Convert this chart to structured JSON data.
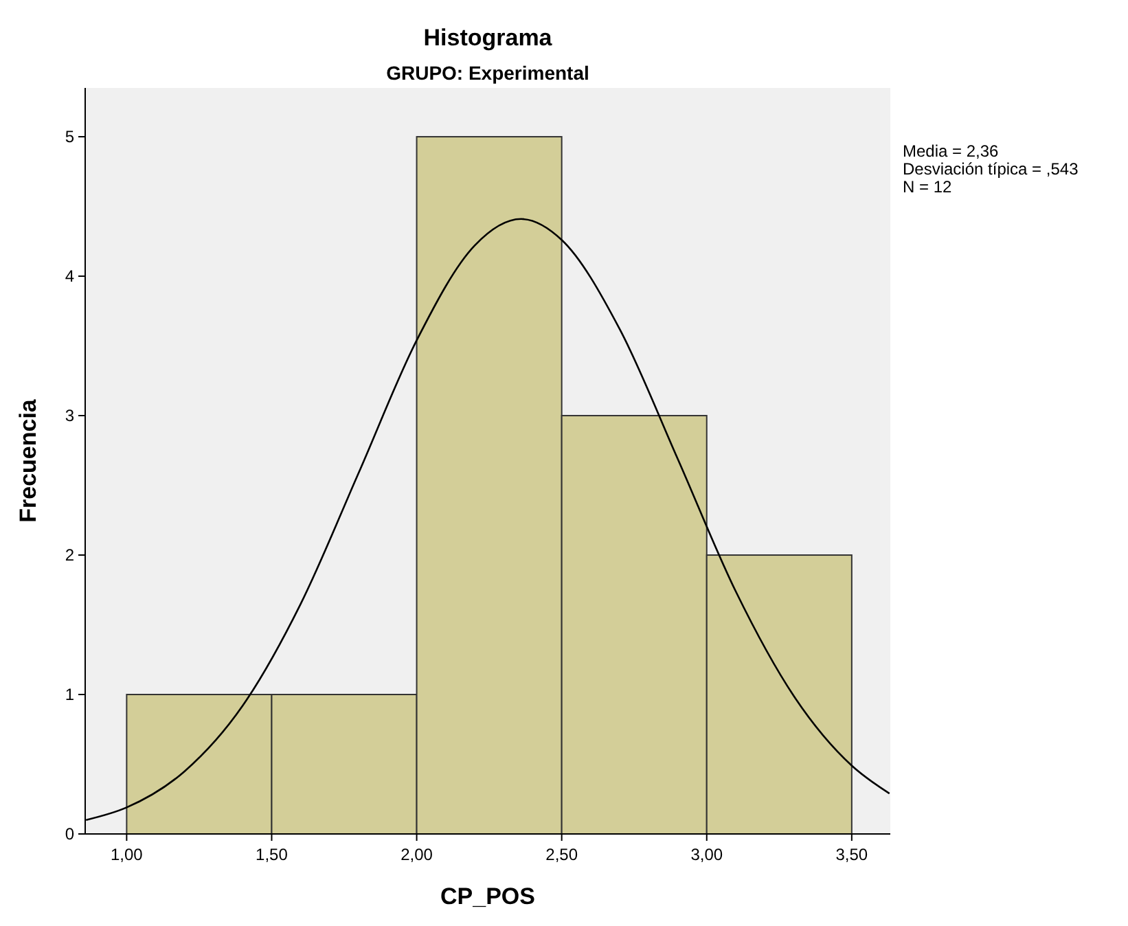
{
  "chart_data": {
    "type": "histogram",
    "title": "Histograma",
    "subtitle": "GRUPO: Experimental",
    "xlabel": "CP_POS",
    "ylabel": "Frecuencia",
    "bins": [
      1,
      1.5,
      2,
      2.5,
      3,
      3.5
    ],
    "values": [
      1,
      1,
      5,
      3,
      2
    ],
    "color": "#d3ce98",
    "series": [
      {
        "type": "line",
        "color": "#000000",
        "x": [
          0.86,
          1.0,
          1.2,
          1.4,
          1.6,
          1.8,
          2.0,
          2.2,
          2.36,
          2.5,
          2.7,
          2.9,
          3.1,
          3.3,
          3.5,
          3.63
        ],
        "values": [
          0.1,
          0.19,
          0.45,
          0.92,
          1.65,
          2.59,
          3.54,
          4.22,
          4.41,
          4.26,
          3.62,
          2.69,
          1.74,
          0.99,
          0.49,
          0.29
        ]
      }
    ],
    "xlim": [
      0.857,
      3.633
    ],
    "ylim": [
      0,
      5.35
    ],
    "xticks": [
      {
        "value": 1,
        "label": "1,00"
      },
      {
        "value": 1.5,
        "label": "1,50"
      },
      {
        "value": 2,
        "label": "2,00"
      },
      {
        "value": 2.5,
        "label": "2,50"
      },
      {
        "value": 3,
        "label": "3,00"
      },
      {
        "value": 3.5,
        "label": "3,50"
      }
    ],
    "yticks": [
      0,
      1,
      2,
      3,
      4,
      5
    ],
    "annotations": [
      "Media = 2,36",
      "Desviación típica = ,543",
      "N = 12"
    ],
    "grid": false,
    "marker": "none",
    "line_style": "solid"
  }
}
